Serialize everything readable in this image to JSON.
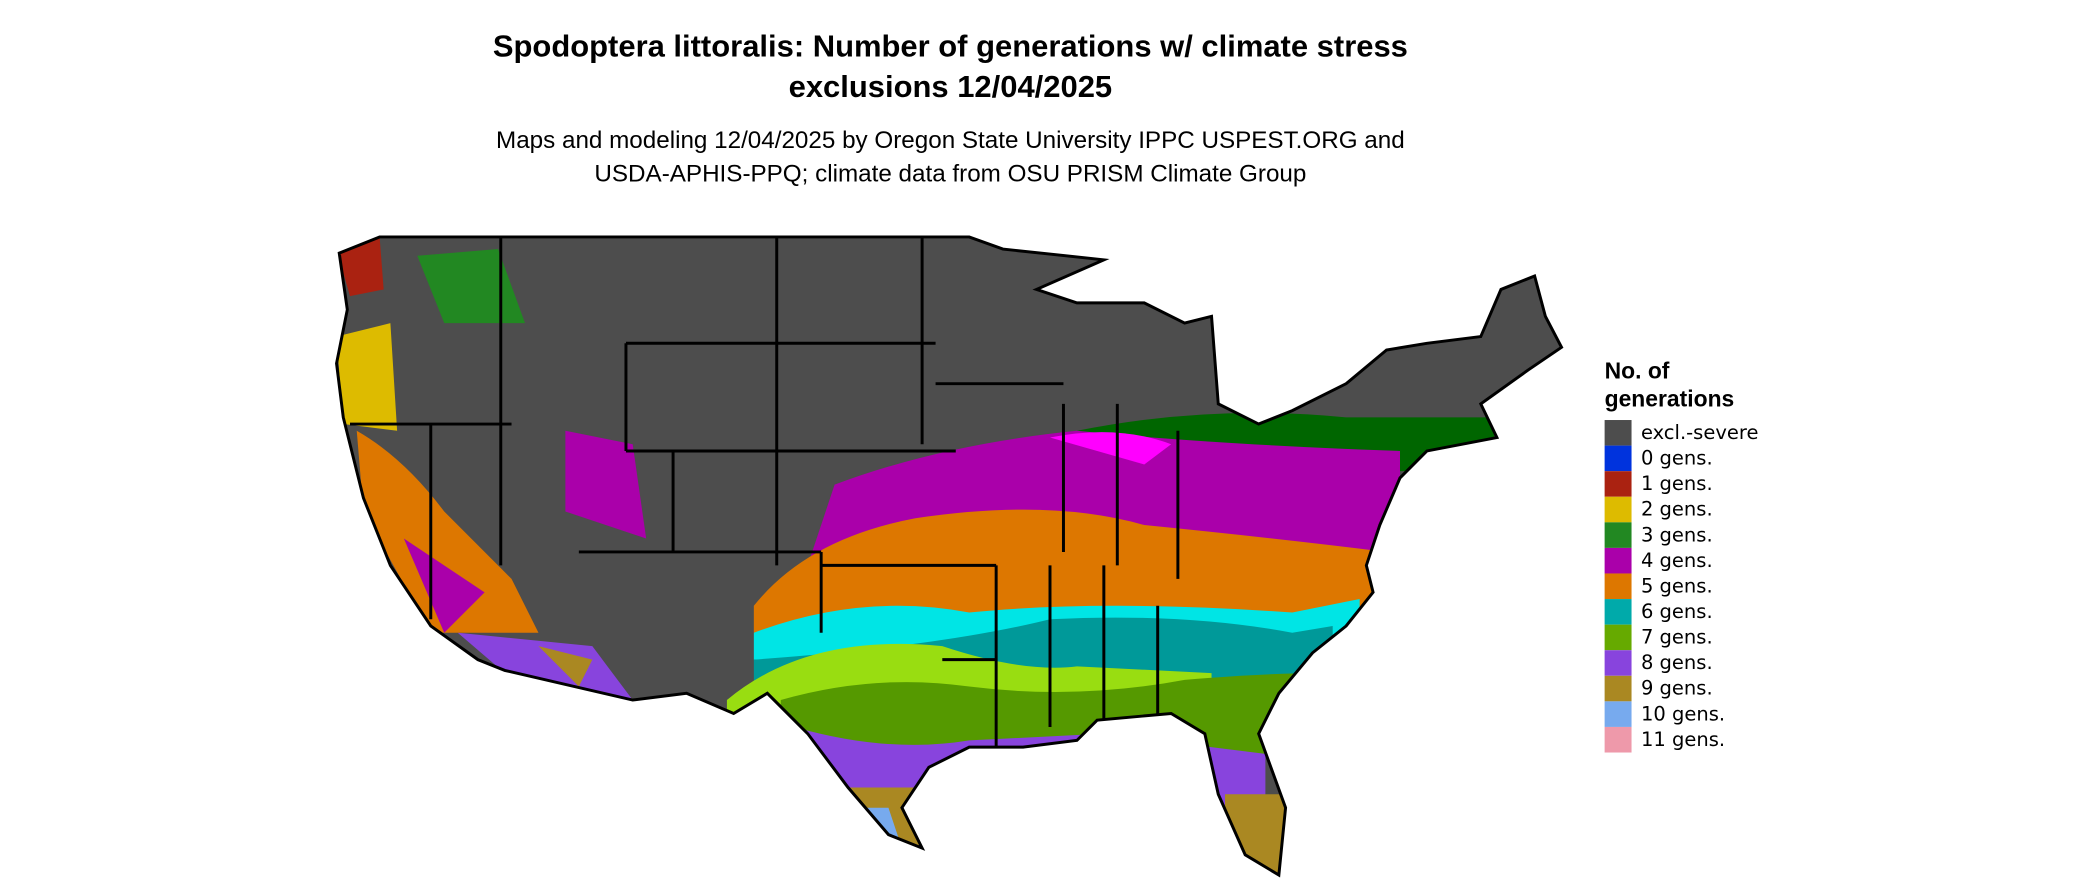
{
  "title": [
    "Spodoptera littoralis: Number of generations w/ climate stress",
    "exclusions 12/04/2025"
  ],
  "subtitle": [
    "Maps and modeling 12/04/2025 by Oregon State University IPPC USPEST.ORG and",
    "USDA-APHIS-PPQ; climate data from OSU PRISM Climate Group"
  ],
  "legend": {
    "title": [
      "No. of",
      "generations"
    ],
    "items": [
      {
        "label": "excl.-severe",
        "color": "#4d4d4d"
      },
      {
        "label": "0 gens.",
        "color": "#0033dd"
      },
      {
        "label": "1 gens.",
        "color": "#aa2211"
      },
      {
        "label": "2 gens.",
        "color": "#ddbb00"
      },
      {
        "label": "3 gens.",
        "color": "#228822"
      },
      {
        "label": "4 gens.",
        "color": "#aa00aa"
      },
      {
        "label": "5 gens.",
        "color": "#dd7700"
      },
      {
        "label": "6 gens.",
        "color": "#00aaaa"
      },
      {
        "label": "7 gens.",
        "color": "#66aa00"
      },
      {
        "label": "8 gens.",
        "color": "#8844dd"
      },
      {
        "label": "9 gens.",
        "color": "#aa8822"
      },
      {
        "label": "10 gens.",
        "color": "#77aaee"
      },
      {
        "label": "11 gens.",
        "color": "#ee99aa"
      }
    ]
  }
}
